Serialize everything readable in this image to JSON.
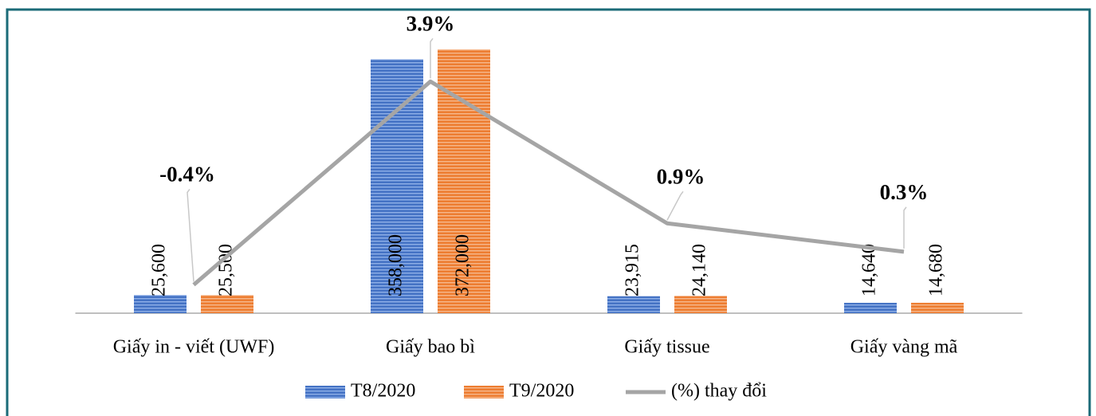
{
  "chart_data": {
    "type": "bar",
    "categories": [
      "Giấy in - viết (UWF)",
      "Giấy bao bì",
      "Giấy tissue",
      "Giấy vàng mã"
    ],
    "series": [
      {
        "name": "T8/2020",
        "color": "#4472c4",
        "values": [
          25600,
          358000,
          23915,
          14640
        ],
        "value_labels": [
          "25,600",
          "358,000",
          "23,915",
          "14,640"
        ]
      },
      {
        "name": "T9/2020",
        "color": "#ed7d31",
        "values": [
          25500,
          372000,
          24140,
          14680
        ],
        "value_labels": [
          "25,500",
          "372,000",
          "24,140",
          "14,680"
        ]
      },
      {
        "name": "(%) thay đổi",
        "type": "line",
        "axis": "y2",
        "color": "#a5a5a5",
        "values": [
          -0.4,
          3.9,
          0.9,
          0.3
        ],
        "value_labels": [
          "-0.4%",
          "3.9%",
          "0.9%",
          "0.3%"
        ]
      }
    ],
    "ylim": [
      0,
      400000
    ],
    "y2lim": [
      -1,
      5
    ],
    "grid": false,
    "legend": "bottom"
  }
}
